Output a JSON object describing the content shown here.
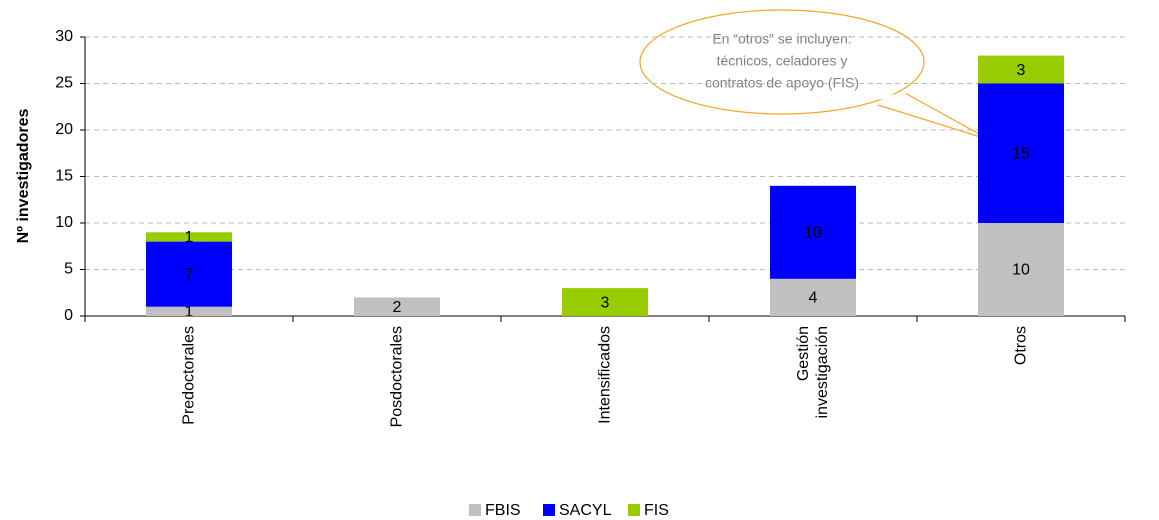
{
  "chart_data": {
    "type": "stacked_bar",
    "y_axis_label": "Nº investigadores",
    "categories": [
      "Predoctorales",
      "Posdoctorales",
      "Intensificados",
      "Gestión investigación",
      "Otros"
    ],
    "series": [
      {
        "name": "FBIS",
        "color": "#c0c0c0",
        "values": [
          1,
          2,
          null,
          4,
          10
        ]
      },
      {
        "name": "SACYL",
        "color": "#0000ff",
        "values": [
          7,
          null,
          null,
          10,
          15
        ]
      },
      {
        "name": "FIS",
        "color": "#99cc00",
        "values": [
          1,
          null,
          3,
          null,
          3
        ]
      }
    ],
    "ylim": [
      0,
      30
    ],
    "yticks": [
      0,
      5,
      10,
      15,
      20,
      25,
      30
    ],
    "grid": true,
    "legend": "bottom",
    "annotation": [
      "En “otros” se incluyen:",
      "técnicos, celadores y",
      "contratos de apoyo (FIS)"
    ]
  }
}
